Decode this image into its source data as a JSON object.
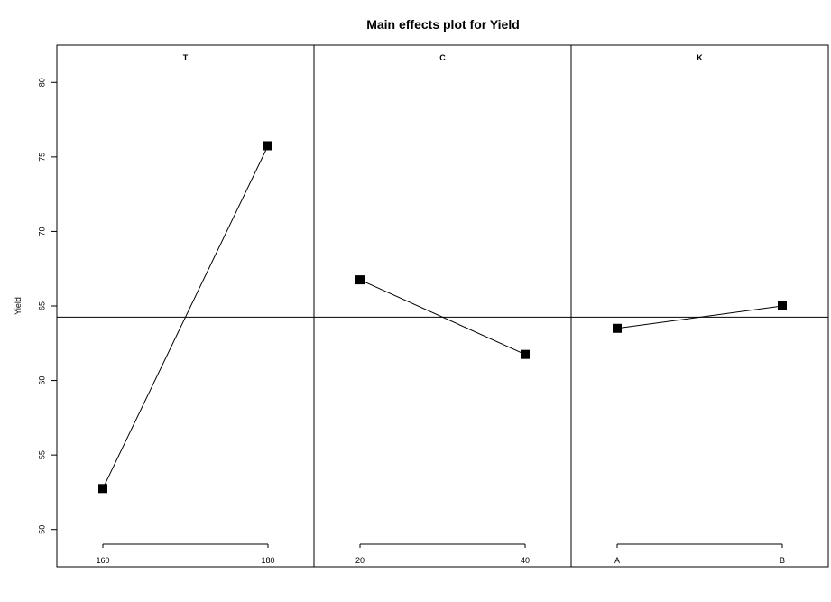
{
  "chart_data": {
    "type": "line",
    "title": "Main effects plot for Yield",
    "ylabel": "Yield",
    "ylim": [
      47.5,
      82.5
    ],
    "yticks": [
      50,
      55,
      60,
      65,
      70,
      75,
      80
    ],
    "grand_mean": 64.25,
    "panels": [
      {
        "label": "T",
        "levels": [
          "160",
          "180"
        ],
        "values": [
          52.75,
          75.75
        ]
      },
      {
        "label": "C",
        "levels": [
          "20",
          "40"
        ],
        "values": [
          66.75,
          61.75
        ]
      },
      {
        "label": "K",
        "levels": [
          "A",
          "B"
        ],
        "values": [
          63.5,
          65.0
        ]
      }
    ],
    "legend": "none",
    "grid": false
  }
}
